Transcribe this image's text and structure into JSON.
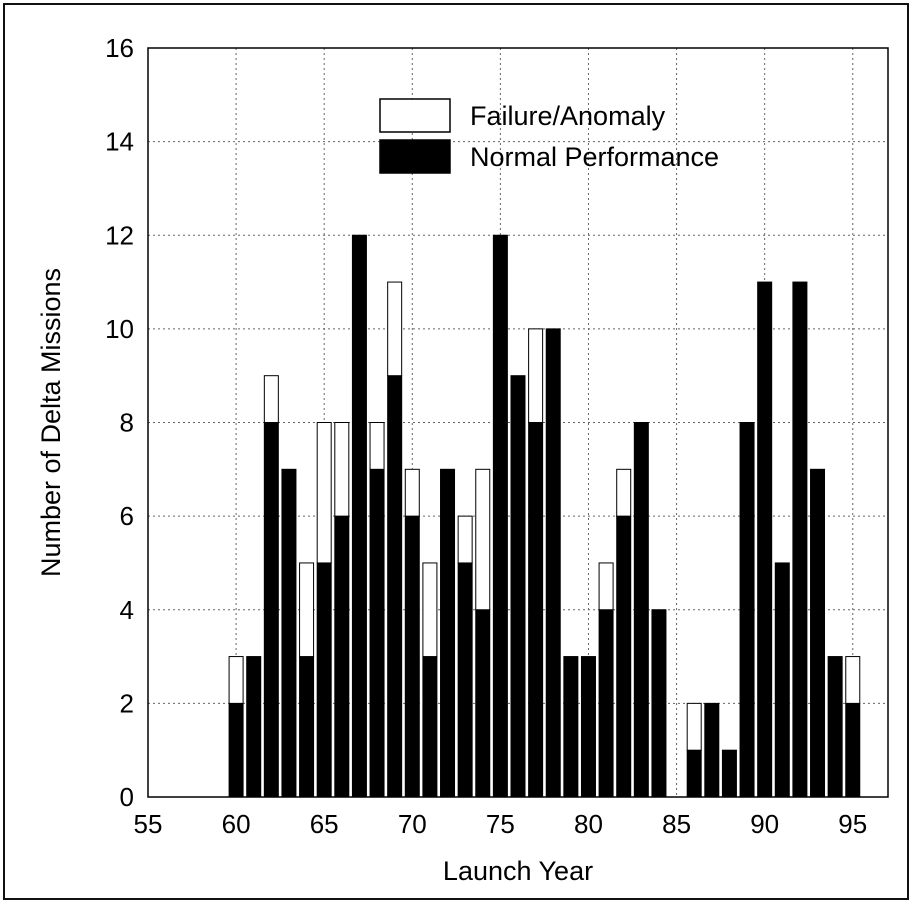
{
  "chart_data": {
    "type": "bar",
    "stacked": true,
    "xlabel": "Launch Year",
    "ylabel": "Number of Delta Missions",
    "xlim": [
      55,
      97
    ],
    "ylim": [
      0,
      16
    ],
    "xticks": [
      "55",
      "60",
      "65",
      "70",
      "75",
      "80",
      "85",
      "90",
      "95"
    ],
    "yticks": [
      "0",
      "2",
      "4",
      "6",
      "8",
      "10",
      "12",
      "14",
      "16"
    ],
    "grid": true,
    "legend_position": "top-center",
    "years": [
      60,
      61,
      62,
      63,
      64,
      65,
      66,
      67,
      68,
      69,
      70,
      71,
      72,
      73,
      74,
      75,
      76,
      77,
      78,
      79,
      80,
      81,
      82,
      83,
      84,
      86,
      87,
      88,
      89,
      90,
      91,
      92,
      93,
      94,
      95
    ],
    "series": [
      {
        "name": "Normal Performance",
        "color": "#000000",
        "values": [
          2,
          3,
          8,
          7,
          3,
          5,
          6,
          12,
          7,
          9,
          6,
          3,
          7,
          5,
          4,
          12,
          9,
          8,
          10,
          3,
          3,
          4,
          6,
          8,
          4,
          1,
          2,
          1,
          8,
          11,
          5,
          11,
          7,
          3,
          2
        ]
      },
      {
        "name": "Failure/Anomaly",
        "color": "#ffffff",
        "values": [
          1,
          0,
          1,
          0,
          2,
          3,
          2,
          0,
          1,
          2,
          1,
          2,
          0,
          1,
          3,
          0,
          0,
          2,
          0,
          0,
          0,
          1,
          1,
          0,
          0,
          1,
          0,
          0,
          0,
          0,
          0,
          0,
          0,
          0,
          1
        ]
      }
    ]
  }
}
